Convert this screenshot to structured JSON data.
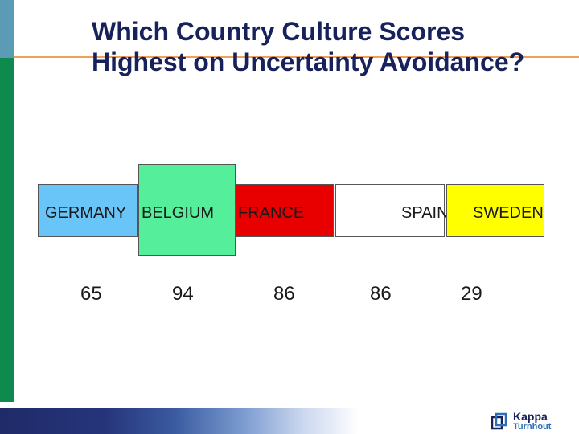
{
  "slide": {
    "title_line1": "Which Country Culture Scores",
    "title_line2": "Highest on Uncertainty Avoidance?"
  },
  "countries": [
    {
      "name": "GERMANY",
      "score": "65",
      "color": "#69c5f8"
    },
    {
      "name": "BELGIUM",
      "score": "94",
      "color": "#55ee9b"
    },
    {
      "name": "FRANCE",
      "score": "86",
      "color": "#e80000"
    },
    {
      "name": "SPAIN",
      "score": "86",
      "color": "#ffffff"
    },
    {
      "name": "SWEDEN",
      "score": "29",
      "color": "#ffff00"
    }
  ],
  "logo": {
    "name": "Kappa",
    "subtitle": "Turnhout"
  }
}
